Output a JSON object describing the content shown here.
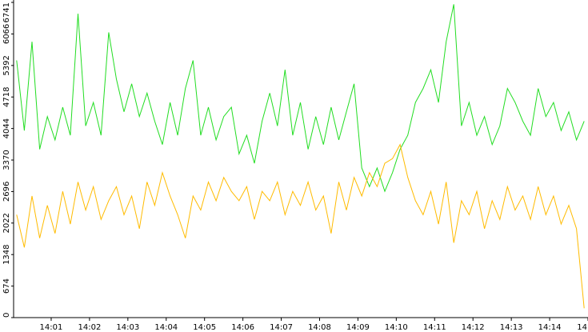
{
  "chart_data": {
    "type": "line",
    "x": [
      0.1,
      0.3,
      0.5,
      0.7,
      0.9,
      1.1,
      1.3,
      1.5,
      1.7,
      1.9,
      2.1,
      2.3,
      2.5,
      2.7,
      2.9,
      3.1,
      3.3,
      3.5,
      3.7,
      3.9,
      4.1,
      4.3,
      4.5,
      4.7,
      4.9,
      5.1,
      5.3,
      5.5,
      5.7,
      5.9,
      6.1,
      6.3,
      6.5,
      6.7,
      6.9,
      7.1,
      7.3,
      7.5,
      7.7,
      7.9,
      8.1,
      8.3,
      8.5,
      8.7,
      8.9,
      9.1,
      9.3,
      9.5,
      9.7,
      9.9,
      10.1,
      10.3,
      10.5,
      10.7,
      10.9,
      11.1,
      11.3,
      11.5,
      11.7,
      11.9,
      12.1,
      12.3,
      12.5,
      12.7,
      12.9,
      13.1,
      13.3,
      13.5,
      13.7,
      13.9,
      14.1,
      14.3,
      14.5,
      14.7,
      14.9
    ],
    "series": [
      {
        "color": "#22dd22",
        "values": [
          5500,
          4000,
          5900,
          3600,
          4300,
          3800,
          4500,
          3900,
          6500,
          4100,
          4600,
          3900,
          6100,
          5100,
          4400,
          5000,
          4300,
          4800,
          4200,
          3700,
          4600,
          3900,
          4900,
          5500,
          3900,
          4500,
          3800,
          4300,
          4500,
          3500,
          3900,
          3300,
          4200,
          4800,
          4100,
          5300,
          3900,
          4600,
          3600,
          4300,
          3700,
          4500,
          3800,
          4400,
          5000,
          3200,
          2800,
          3200,
          2700,
          3100,
          3600,
          3900,
          4600,
          4900,
          5300,
          4600,
          5900,
          6700,
          4100,
          4600,
          3900,
          4300,
          3700,
          4100,
          4900,
          4600,
          4200,
          3900,
          4900,
          4300,
          4600,
          4000,
          4400,
          3800,
          4200
        ]
      },
      {
        "color": "#ffbb00",
        "values": [
          2200,
          1500,
          2600,
          1700,
          2400,
          1800,
          2700,
          2000,
          2900,
          2300,
          2800,
          2100,
          2500,
          2800,
          2200,
          2600,
          1900,
          2900,
          2400,
          3100,
          2600,
          2200,
          1700,
          2600,
          2300,
          2900,
          2500,
          3000,
          2700,
          2500,
          2800,
          2100,
          2700,
          2500,
          2900,
          2200,
          2700,
          2400,
          2900,
          2300,
          2600,
          1800,
          2900,
          2300,
          3000,
          2600,
          3100,
          2800,
          3300,
          3400,
          3700,
          3000,
          2500,
          2200,
          2700,
          2000,
          2900,
          1600,
          2500,
          2200,
          2700,
          1900,
          2500,
          2100,
          2800,
          2300,
          2600,
          2100,
          2800,
          2200,
          2600,
          2000,
          2400,
          1900,
          200
        ]
      }
    ],
    "xlim": [
      0.02,
      15
    ],
    "xticks": [
      {
        "value": 1,
        "label": "14:01"
      },
      {
        "value": 2,
        "label": "14:02"
      },
      {
        "value": 3,
        "label": "14:03"
      },
      {
        "value": 4,
        "label": "14:04"
      },
      {
        "value": 5,
        "label": "14:05"
      },
      {
        "value": 6,
        "label": "14:06"
      },
      {
        "value": 7,
        "label": "14:07"
      },
      {
        "value": 8,
        "label": "14:08"
      },
      {
        "value": 9,
        "label": "14:09"
      },
      {
        "value": 10,
        "label": "14:10"
      },
      {
        "value": 11,
        "label": "14:11"
      },
      {
        "value": 12,
        "label": "14:12"
      },
      {
        "value": 13,
        "label": "14:13"
      },
      {
        "value": 14,
        "label": "14:14"
      },
      {
        "value": 15,
        "label": "14"
      }
    ],
    "ylim": [
      0,
      6741
    ],
    "yticks": [
      0,
      674,
      1348,
      2022,
      2696,
      3370,
      4044,
      4718,
      5392,
      6066,
      6741
    ]
  }
}
